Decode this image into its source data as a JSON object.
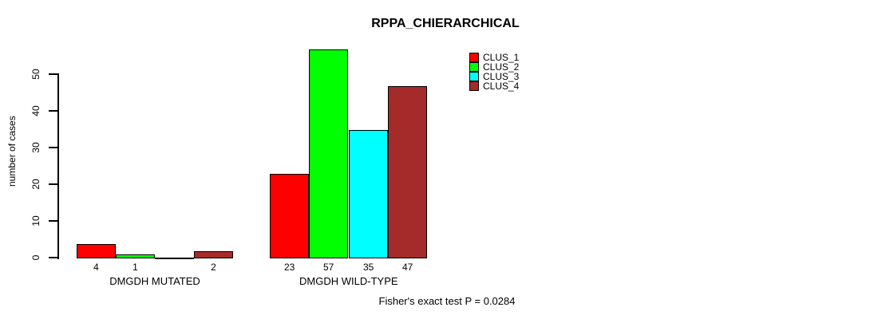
{
  "chart_data": {
    "type": "bar",
    "title": "RPPA_CHIERARCHICAL",
    "ylabel": "number of cases",
    "xlabel": "",
    "ylim": [
      0,
      57
    ],
    "yticks": [
      0,
      10,
      20,
      30,
      40,
      50
    ],
    "grid": false,
    "legend_position": "top-right",
    "categories": [
      "DMGDH MUTATED",
      "DMGDH WILD-TYPE"
    ],
    "series": [
      {
        "name": "CLUS_1",
        "color": "#ff0000",
        "values": [
          4,
          23
        ]
      },
      {
        "name": "CLUS_2",
        "color": "#00ff00",
        "values": [
          1,
          57
        ]
      },
      {
        "name": "CLUS_3",
        "color": "#00ffff",
        "values": [
          0,
          35
        ]
      },
      {
        "name": "CLUS_4",
        "color": "#a52a2a",
        "values": [
          2,
          47
        ]
      }
    ],
    "bar_value_labels_shown": true,
    "zero_value_labels_hidden": true,
    "annotation": "Fisher's exact test P = 0.0284"
  }
}
